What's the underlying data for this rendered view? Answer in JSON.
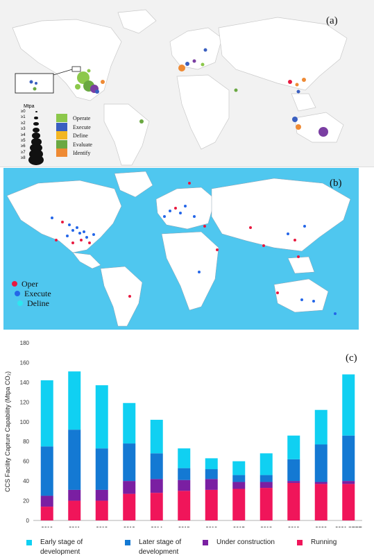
{
  "panel_a": {
    "label": "(a)",
    "size_legend_title": "Mtpa",
    "size_legend_items": [
      "≥0",
      "≥1",
      "≥2",
      "≥3",
      "≥4",
      "≥5",
      "≥6",
      "≥7",
      "≥8"
    ],
    "legend": [
      {
        "label": "Operate",
        "color": "#8cc84b"
      },
      {
        "label": "Execute",
        "color": "#3a5fc0"
      },
      {
        "label": "Define",
        "color": "#f3b623"
      },
      {
        "label": "Evaluate",
        "color": "#6aa842"
      },
      {
        "label": "Identify",
        "color": "#ee8a34"
      }
    ]
  },
  "panel_b": {
    "label": "(b)",
    "legend": [
      {
        "label": "Oper",
        "color": "#e8193f"
      },
      {
        "label": "Execute",
        "color": "#2466e8"
      },
      {
        "label": "Deline",
        "color": "#2ee6f0"
      }
    ]
  },
  "panel_c": {
    "label": "(c)"
  },
  "chart_data": {
    "type": "bar",
    "stacked": true,
    "title": "",
    "xlabel": "",
    "ylabel": "CCS Facility Capture Capability (Mtpa CO₂)",
    "ylim": [
      0,
      180
    ],
    "yticks": [
      0,
      20,
      40,
      60,
      80,
      100,
      120,
      140,
      160,
      180
    ],
    "grid": false,
    "legend_position": "bottom",
    "categories": [
      "2010",
      "2011",
      "2012",
      "2013",
      "2014",
      "2015",
      "2016",
      "2017",
      "2018",
      "2019",
      "2020",
      "2021 SEPT"
    ],
    "series": [
      {
        "name": "Running",
        "color": "#f0155a",
        "values": [
          14,
          20,
          20,
          27,
          28,
          30,
          31,
          32,
          33,
          38,
          37,
          37
        ]
      },
      {
        "name": "Under construction",
        "color": "#7a1fa2",
        "values": [
          11,
          11,
          11,
          13,
          14,
          11,
          11,
          7,
          6,
          2,
          2,
          3
        ]
      },
      {
        "name": "Later stage of development",
        "color": "#1479d3",
        "values": [
          50,
          61,
          42,
          38,
          26,
          12,
          10,
          7,
          7,
          22,
          38,
          46
        ]
      },
      {
        "name": "Early stage of development",
        "color": "#10d0f2",
        "values": [
          67,
          59,
          64,
          41,
          34,
          20,
          11,
          14,
          22,
          24,
          35,
          62
        ]
      }
    ]
  }
}
